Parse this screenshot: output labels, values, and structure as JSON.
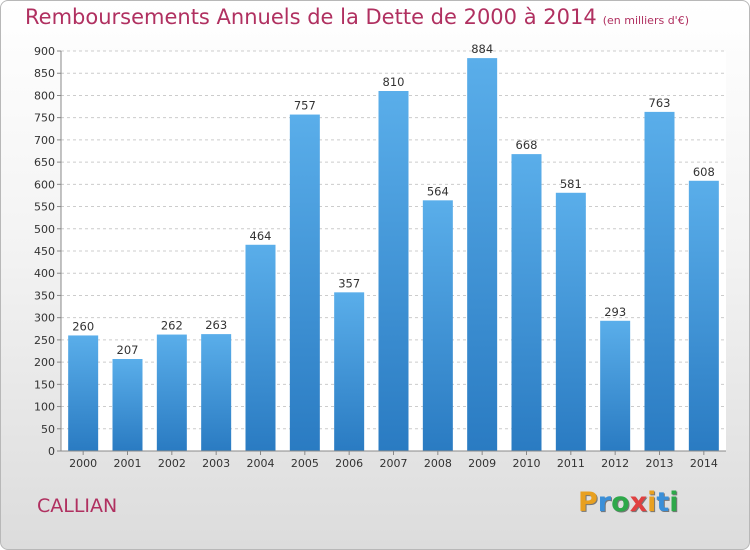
{
  "header": {
    "title": "Remboursements Annuels de la Dette de 2000 à 2014",
    "unit": "(en milliers d'€)"
  },
  "footer": {
    "commune": "CALLIAN",
    "logo": {
      "text": "Proxiti",
      "letters": [
        {
          "char": "P",
          "color": "#e8a020"
        },
        {
          "char": "r",
          "color": "#3a8fd8"
        },
        {
          "char": "o",
          "color": "#2ea84a"
        },
        {
          "char": "x",
          "color": "#e04040"
        },
        {
          "char": "i",
          "color": "#e8a020"
        },
        {
          "char": "t",
          "color": "#3a8fd8"
        },
        {
          "char": "i",
          "color": "#2ea84a"
        }
      ]
    }
  },
  "chart_data": {
    "type": "bar",
    "title": "Remboursements Annuels de la Dette de 2000 à 2014",
    "xlabel": "",
    "ylabel": "",
    "categories": [
      "2000",
      "2001",
      "2002",
      "2003",
      "2004",
      "2005",
      "2006",
      "2007",
      "2008",
      "2009",
      "2010",
      "2011",
      "2012",
      "2013",
      "2014"
    ],
    "values": [
      260,
      207,
      262,
      263,
      464,
      757,
      357,
      810,
      564,
      884,
      668,
      581,
      293,
      763,
      608
    ],
    "ylim": [
      0,
      900
    ],
    "yticks": [
      0,
      50,
      100,
      150,
      200,
      250,
      300,
      350,
      400,
      450,
      500,
      550,
      600,
      650,
      700,
      750,
      800,
      850,
      900
    ],
    "grid": true,
    "colors": {
      "bar_top": "#5aaeea",
      "bar_bottom": "#2a7bc2",
      "grid": "#cccccc",
      "axis": "#888888",
      "text": "#333333"
    }
  }
}
